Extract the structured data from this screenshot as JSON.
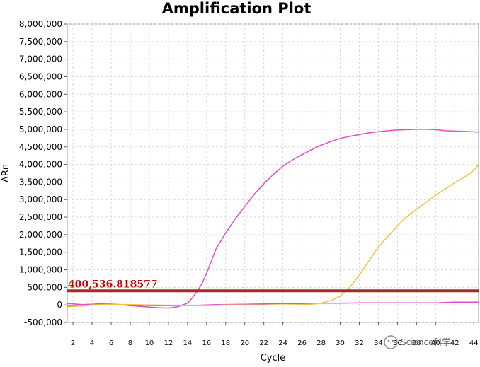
{
  "chart_data": {
    "type": "line",
    "title": "Amplification Plot",
    "xlabel": "Cycle",
    "ylabel": "ΔRn",
    "xlim": [
      1.4,
      44.5
    ],
    "ylim": [
      -500000,
      8000000
    ],
    "grid": true,
    "x_ticks": [
      2,
      4,
      6,
      8,
      10,
      12,
      14,
      16,
      18,
      20,
      22,
      24,
      26,
      28,
      30,
      32,
      34,
      36,
      38,
      40,
      42,
      44
    ],
    "y_ticks": [
      {
        "value": 8000000,
        "label": "8,000,000"
      },
      {
        "value": 7500000,
        "label": "7,500,000"
      },
      {
        "value": 7000000,
        "label": "7,000,000"
      },
      {
        "value": 6500000,
        "label": "6,500,000"
      },
      {
        "value": 6000000,
        "label": "6,000,000"
      },
      {
        "value": 5500000,
        "label": "5,500,000"
      },
      {
        "value": 5000000,
        "label": "5,000,000"
      },
      {
        "value": 4500000,
        "label": "4,500,000"
      },
      {
        "value": 4000000,
        "label": "4,000,000"
      },
      {
        "value": 3500000,
        "label": "3,500,000"
      },
      {
        "value": 3000000,
        "label": "3,000,000"
      },
      {
        "value": 2500000,
        "label": "2,500,000"
      },
      {
        "value": 2000000,
        "label": "2,000,000"
      },
      {
        "value": 1500000,
        "label": "1,500,000"
      },
      {
        "value": 1000000,
        "label": "1,000,000"
      },
      {
        "value": 500000,
        "label": "500,000"
      },
      {
        "value": 0,
        "label": "0"
      },
      {
        "value": -500000,
        "label": "-500,000"
      }
    ],
    "threshold": {
      "value": 400536.818577,
      "label": "400,536.818577",
      "color": "#a52a2a"
    },
    "series": [
      {
        "color": "#e64bc8",
        "points": [
          [
            1.4,
            40000
          ],
          [
            2,
            30000
          ],
          [
            3,
            10000
          ],
          [
            4,
            20000
          ],
          [
            5,
            40000
          ],
          [
            6,
            30000
          ],
          [
            7,
            10000
          ],
          [
            8,
            -20000
          ],
          [
            9,
            -40000
          ],
          [
            10,
            -60000
          ],
          [
            11,
            -80000
          ],
          [
            12,
            -90000
          ],
          [
            13,
            -50000
          ],
          [
            14,
            50000
          ],
          [
            14.5,
            200000
          ],
          [
            15,
            380000
          ],
          [
            15.5,
            600000
          ],
          [
            16,
            900000
          ],
          [
            16.5,
            1250000
          ],
          [
            17,
            1600000
          ],
          [
            18,
            2050000
          ],
          [
            19,
            2450000
          ],
          [
            20,
            2800000
          ],
          [
            21,
            3150000
          ],
          [
            22,
            3450000
          ],
          [
            23,
            3720000
          ],
          [
            24,
            3950000
          ],
          [
            25,
            4130000
          ],
          [
            26,
            4280000
          ],
          [
            27,
            4420000
          ],
          [
            28,
            4550000
          ],
          [
            29,
            4650000
          ],
          [
            30,
            4740000
          ],
          [
            31,
            4800000
          ],
          [
            32,
            4850000
          ],
          [
            33,
            4900000
          ],
          [
            34,
            4930000
          ],
          [
            35,
            4960000
          ],
          [
            36,
            4980000
          ],
          [
            37,
            4990000
          ],
          [
            38,
            5000000
          ],
          [
            39,
            5000000
          ],
          [
            40,
            4990000
          ],
          [
            41,
            4960000
          ],
          [
            42,
            4950000
          ],
          [
            43,
            4940000
          ],
          [
            44,
            4930000
          ],
          [
            44.5,
            4920000
          ]
        ]
      },
      {
        "color": "#e64bc8",
        "points": [
          [
            1.4,
            -20000
          ],
          [
            3,
            0
          ],
          [
            5,
            20000
          ],
          [
            7,
            10000
          ],
          [
            9,
            -10000
          ],
          [
            11,
            -20000
          ],
          [
            13,
            -20000
          ],
          [
            15,
            -10000
          ],
          [
            17,
            10000
          ],
          [
            20,
            20000
          ],
          [
            22,
            30000
          ],
          [
            24,
            40000
          ],
          [
            26,
            40000
          ],
          [
            28,
            50000
          ],
          [
            30,
            50000
          ],
          [
            32,
            60000
          ],
          [
            34,
            60000
          ],
          [
            36,
            60000
          ],
          [
            38,
            60000
          ],
          [
            40,
            60000
          ],
          [
            41,
            70000
          ],
          [
            42,
            80000
          ],
          [
            44.5,
            80000
          ]
        ]
      },
      {
        "color": "#f0c040",
        "points": [
          [
            1.4,
            -50000
          ],
          [
            2,
            -40000
          ],
          [
            3,
            -30000
          ],
          [
            4,
            0
          ],
          [
            5,
            10000
          ],
          [
            6,
            20000
          ],
          [
            8,
            10000
          ],
          [
            10,
            0
          ],
          [
            12,
            -10000
          ],
          [
            14,
            -20000
          ],
          [
            16,
            -20000
          ],
          [
            18,
            0
          ],
          [
            20,
            0
          ],
          [
            22,
            0
          ],
          [
            24,
            0
          ],
          [
            26,
            10000
          ],
          [
            27,
            20000
          ],
          [
            28,
            50000
          ],
          [
            29,
            120000
          ],
          [
            30,
            250000
          ],
          [
            31,
            500000
          ],
          [
            32,
            850000
          ],
          [
            33,
            1250000
          ],
          [
            34,
            1650000
          ],
          [
            35,
            1950000
          ],
          [
            36,
            2250000
          ],
          [
            37,
            2520000
          ],
          [
            38,
            2720000
          ],
          [
            39,
            2920000
          ],
          [
            40,
            3120000
          ],
          [
            41,
            3300000
          ],
          [
            42,
            3480000
          ],
          [
            43,
            3640000
          ],
          [
            44,
            3830000
          ],
          [
            44.5,
            4000000
          ]
        ]
      }
    ]
  },
  "watermark": {
    "text": "Science科学"
  }
}
